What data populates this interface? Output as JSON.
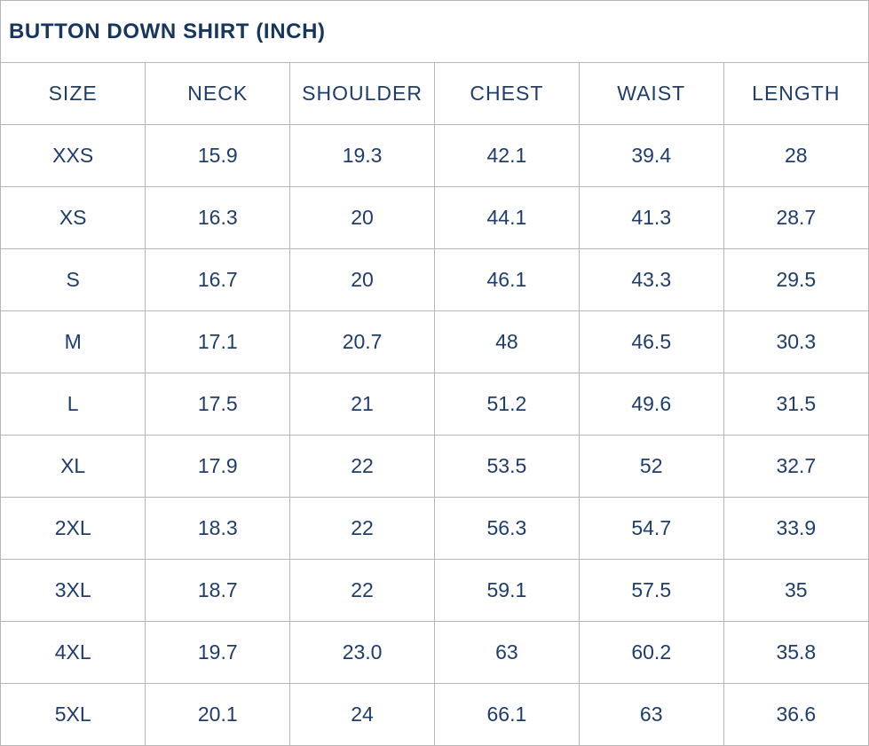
{
  "title": "BUTTON DOWN SHIRT (INCH)",
  "colors": {
    "title_text": "#17365d",
    "cell_text": "#1e3d6d",
    "grid_border": "#b7b7b7",
    "background": "#ffffff"
  },
  "chart_data": {
    "type": "table",
    "title": "BUTTON DOWN SHIRT (INCH)",
    "unit": "INCH",
    "columns": [
      "SIZE",
      "NECK",
      "SHOULDER",
      "CHEST",
      "WAIST",
      "LENGTH"
    ],
    "rows": [
      [
        "XXS",
        "15.9",
        "19.3",
        "42.1",
        "39.4",
        "28"
      ],
      [
        "XS",
        "16.3",
        "20",
        "44.1",
        "41.3",
        "28.7"
      ],
      [
        "S",
        "16.7",
        "20",
        "46.1",
        "43.3",
        "29.5"
      ],
      [
        "M",
        "17.1",
        "20.7",
        "48",
        "46.5",
        "30.3"
      ],
      [
        "L",
        "17.5",
        "21",
        "51.2",
        "49.6",
        "31.5"
      ],
      [
        "XL",
        "17.9",
        "22",
        "53.5",
        "52",
        "32.7"
      ],
      [
        "2XL",
        "18.3",
        "22",
        "56.3",
        "54.7",
        "33.9"
      ],
      [
        "3XL",
        "18.7",
        "22",
        "59.1",
        "57.5",
        "35"
      ],
      [
        "4XL",
        "19.7",
        "23.0",
        "63",
        "60.2",
        "35.8"
      ],
      [
        "5XL",
        "20.1",
        "24",
        "66.1",
        "63",
        "36.6"
      ]
    ]
  }
}
